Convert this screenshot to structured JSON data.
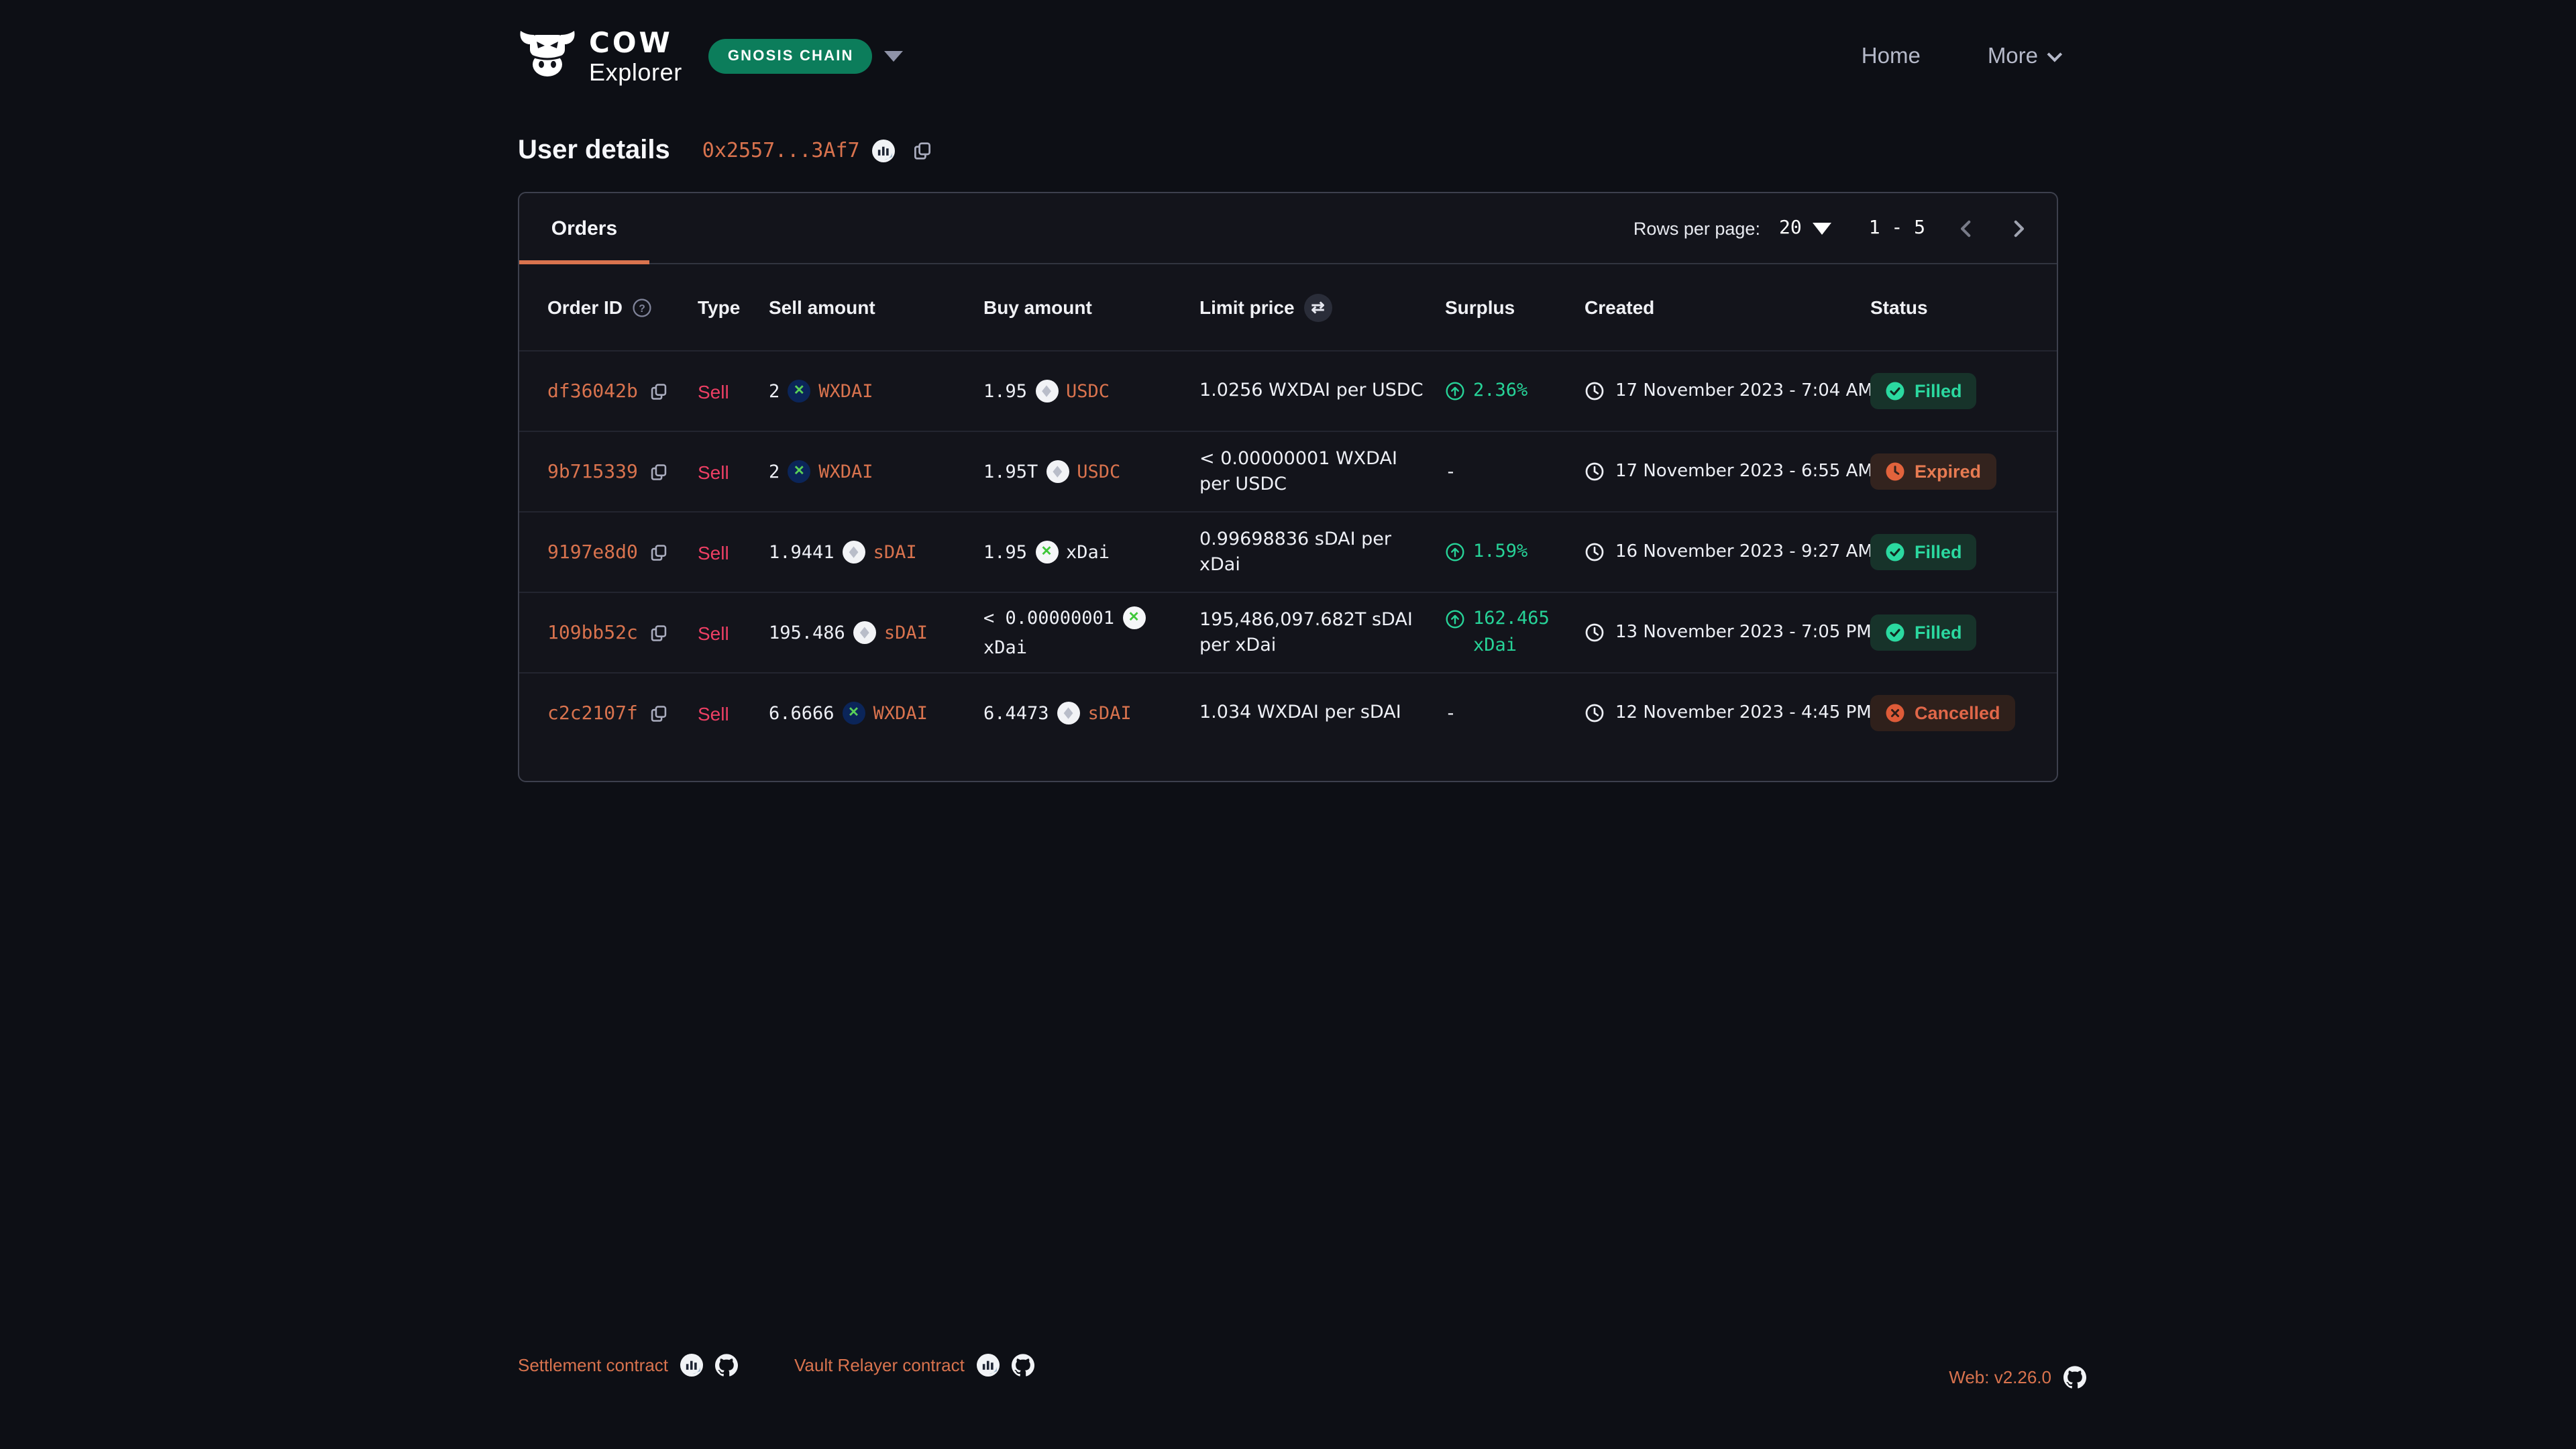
{
  "header": {
    "brand_line1": "COW",
    "brand_line2": "Explorer",
    "chain_selector": "GNOSIS CHAIN",
    "nav": [
      {
        "label": "Home"
      },
      {
        "label": "More"
      }
    ]
  },
  "page": {
    "title": "User details",
    "address_short": "0x2557...3Af7"
  },
  "panel": {
    "tabs": [
      {
        "label": "Orders",
        "active": true
      }
    ],
    "pagination": {
      "rows_per_page_label": "Rows per page:",
      "rows_per_page_value": "20",
      "range": "1 - 5",
      "prev_icon": "chevron-left-icon",
      "next_icon": "chevron-right-icon"
    },
    "table": {
      "columns": [
        "Order ID",
        "Type",
        "Sell amount",
        "Buy amount",
        "Limit price",
        "Surplus",
        "Created",
        "Status"
      ],
      "order_id_help_icon": "help-circle-icon",
      "limit_price_swap_icon": "swap-arrows-icon",
      "rows": [
        {
          "order_id": "df36042b",
          "type": "Sell",
          "sell": {
            "amount": "2",
            "token": "WXDAI",
            "icon": "gnosis-token-icon",
            "token_is_link": true
          },
          "buy": {
            "amount": "1.95",
            "token": "USDC",
            "icon": "generic-token-icon",
            "token_is_link": true
          },
          "limit_price": "1.0256 WXDAI per USDC",
          "surplus": "2.36%",
          "created": "17 November 2023 - 7:04 AM",
          "status": {
            "label": "Filled",
            "kind": "filled"
          }
        },
        {
          "order_id": "9b715339",
          "type": "Sell",
          "sell": {
            "amount": "2",
            "token": "WXDAI",
            "icon": "gnosis-token-icon",
            "token_is_link": true
          },
          "buy": {
            "amount": "1.95T",
            "token": "USDC",
            "icon": "generic-token-icon",
            "token_is_link": true
          },
          "limit_price": "< 0.00000001 WXDAI per USDC",
          "surplus": "-",
          "created": "17 November 2023 - 6:55 AM",
          "status": {
            "label": "Expired",
            "kind": "expired"
          }
        },
        {
          "order_id": "9197e8d0",
          "type": "Sell",
          "sell": {
            "amount": "1.9441",
            "token": "sDAI",
            "icon": "generic-token-icon",
            "token_is_link": true
          },
          "buy": {
            "amount": "1.95",
            "token": "xDai",
            "icon": "xdai-token-icon",
            "token_is_link": false
          },
          "limit_price": "0.99698836 sDAI per xDai",
          "surplus": "1.59%",
          "created": "16 November 2023 - 9:27 AM",
          "status": {
            "label": "Filled",
            "kind": "filled"
          }
        },
        {
          "order_id": "109bb52c",
          "type": "Sell",
          "sell": {
            "amount": "195.486",
            "token": "sDAI",
            "icon": "generic-token-icon",
            "token_is_link": true
          },
          "buy": {
            "amount": "< 0.00000001",
            "token": "xDai",
            "icon": "xdai-token-icon",
            "token_is_link": false
          },
          "limit_price": "195,486,097.682T sDAI per xDai",
          "surplus": "162.465 xDai",
          "created": "13 November 2023 - 7:05 PM",
          "status": {
            "label": "Filled",
            "kind": "filled"
          }
        },
        {
          "order_id": "c2c2107f",
          "type": "Sell",
          "sell": {
            "amount": "6.6666",
            "token": "WXDAI",
            "icon": "gnosis-token-icon",
            "token_is_link": true
          },
          "buy": {
            "amount": "6.4473",
            "token": "sDAI",
            "icon": "generic-token-icon",
            "token_is_link": true
          },
          "limit_price": "1.034 WXDAI per sDAI",
          "surplus": "-",
          "created": "12 November 2023 - 4:45 PM",
          "status": {
            "label": "Cancelled",
            "kind": "cancelled"
          }
        }
      ]
    }
  },
  "footer": {
    "links": [
      {
        "label": "Settlement contract",
        "icons": [
          "blockscout-icon",
          "github-icon"
        ]
      },
      {
        "label": "Vault Relayer contract",
        "icons": [
          "blockscout-icon",
          "github-icon"
        ]
      }
    ],
    "version": "Web: v2.26.0",
    "version_icon": "github-icon"
  },
  "colors": {
    "page_bg": "#0d0f15",
    "panel_border": "#3d404d",
    "accent_orange": "#d9734e",
    "sell_red": "#ee3f64",
    "surplus_green": "#27d398",
    "chain_pill_green": "#0c7d5b",
    "filled_badge_bg": "#17332a",
    "expired_text": "#e77b52",
    "cancelled_text": "#e06749"
  }
}
